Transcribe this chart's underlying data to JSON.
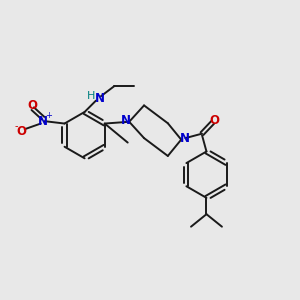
{
  "bg_color": "#e8e8e8",
  "bond_color": "#1a1a1a",
  "N_color": "#0000cc",
  "O_color": "#cc0000",
  "H_color": "#008080",
  "figsize": [
    3.0,
    3.0
  ],
  "dpi": 100,
  "lw": 1.4,
  "fs": 8.5,
  "xlim": [
    0,
    10
  ],
  "ylim": [
    0,
    10
  ]
}
